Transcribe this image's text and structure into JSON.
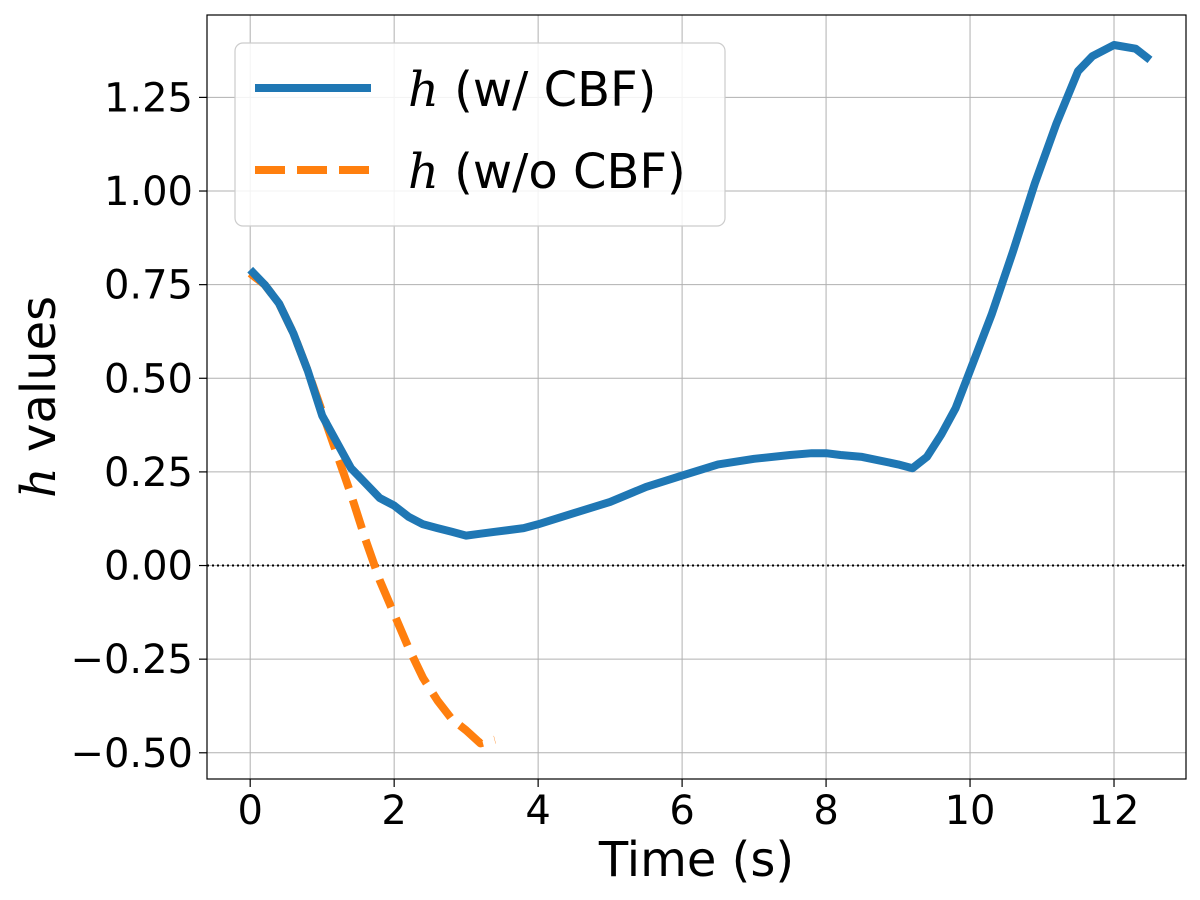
{
  "chart_data": {
    "type": "line",
    "title": "",
    "xlabel": "Time (s)",
    "ylabel_var": "h",
    "ylabel_rest": " values",
    "xlim": [
      -0.6,
      13.0
    ],
    "ylim": [
      -0.57,
      1.47
    ],
    "xticks": [
      0,
      2,
      4,
      6,
      8,
      10,
      12
    ],
    "xtick_labels": [
      "0",
      "2",
      "4",
      "6",
      "8",
      "10",
      "12"
    ],
    "yticks": [
      -0.5,
      -0.25,
      0.0,
      0.25,
      0.5,
      0.75,
      1.0,
      1.25
    ],
    "ytick_labels": [
      "−0.50",
      "−0.25",
      "0.00",
      "0.25",
      "0.50",
      "0.75",
      "1.00",
      "1.25"
    ],
    "grid": true,
    "legend_position": "upper-left",
    "reference_line": {
      "y": 0.0,
      "style": "dotted",
      "color": "#000000"
    },
    "series": [
      {
        "name_var": "h",
        "name_rest": " (w/ CBF)",
        "color": "#1f77b4",
        "style": "solid",
        "x": [
          0.0,
          0.2,
          0.4,
          0.6,
          0.8,
          1.0,
          1.2,
          1.4,
          1.6,
          1.8,
          2.0,
          2.2,
          2.4,
          2.6,
          2.8,
          3.0,
          3.2,
          3.4,
          3.6,
          3.8,
          4.0,
          4.5,
          5.0,
          5.5,
          6.0,
          6.5,
          7.0,
          7.5,
          7.8,
          8.0,
          8.2,
          8.5,
          9.0,
          9.2,
          9.4,
          9.6,
          9.8,
          10.0,
          10.3,
          10.6,
          10.9,
          11.2,
          11.5,
          11.7,
          12.0,
          12.3,
          12.5
        ],
        "y": [
          0.79,
          0.75,
          0.7,
          0.62,
          0.52,
          0.4,
          0.33,
          0.26,
          0.22,
          0.18,
          0.16,
          0.13,
          0.11,
          0.1,
          0.09,
          0.08,
          0.085,
          0.09,
          0.095,
          0.1,
          0.11,
          0.14,
          0.17,
          0.21,
          0.24,
          0.27,
          0.285,
          0.295,
          0.3,
          0.3,
          0.295,
          0.29,
          0.27,
          0.26,
          0.29,
          0.35,
          0.42,
          0.52,
          0.67,
          0.84,
          1.02,
          1.18,
          1.32,
          1.36,
          1.39,
          1.38,
          1.35
        ]
      },
      {
        "name_var": "h",
        "name_rest": " (w/o CBF)",
        "color": "#ff7f0e",
        "style": "dashed",
        "x": [
          0.0,
          0.2,
          0.4,
          0.6,
          0.8,
          1.0,
          1.2,
          1.4,
          1.6,
          1.8,
          2.0,
          2.2,
          2.4,
          2.6,
          2.8,
          3.0,
          3.2,
          3.4
        ],
        "y": [
          0.78,
          0.75,
          0.7,
          0.62,
          0.52,
          0.41,
          0.3,
          0.19,
          0.07,
          -0.04,
          -0.13,
          -0.22,
          -0.3,
          -0.36,
          -0.41,
          -0.44,
          -0.475,
          -0.465
        ]
      }
    ]
  }
}
